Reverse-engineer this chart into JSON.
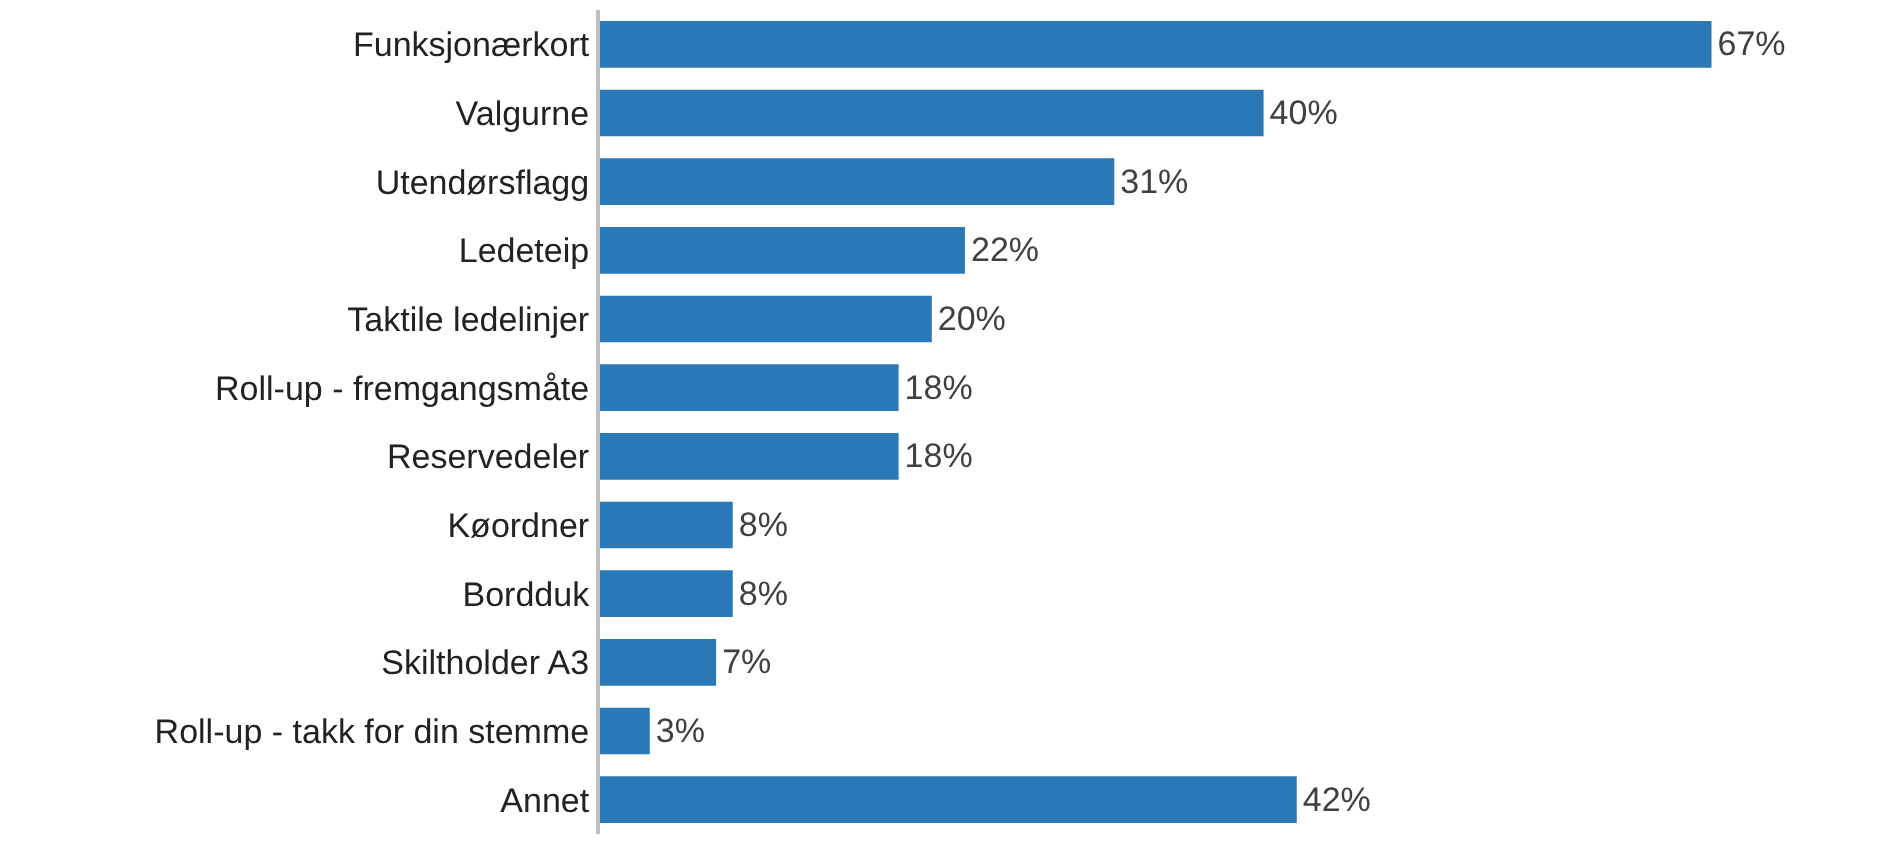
{
  "chart_data": {
    "type": "bar",
    "orientation": "horizontal",
    "categories": [
      "Funksjonærkort",
      "Valgurne",
      "Utendørsflagg",
      "Ledeteip",
      "Taktile ledelinjer",
      "Roll-up - fremgangsmåte",
      "Reservedeler",
      "Køordner",
      "Bordduk",
      "Skiltholder A3",
      "Roll-up - takk for din stemme",
      "Annet"
    ],
    "values": [
      67,
      40,
      31,
      22,
      20,
      18,
      18,
      8,
      8,
      7,
      3,
      42
    ],
    "value_labels": [
      "67%",
      "40%",
      "31%",
      "22%",
      "20%",
      "18%",
      "18%",
      "8%",
      "8%",
      "7%",
      "3%",
      "42%"
    ],
    "color": "#2a78b5"
  }
}
